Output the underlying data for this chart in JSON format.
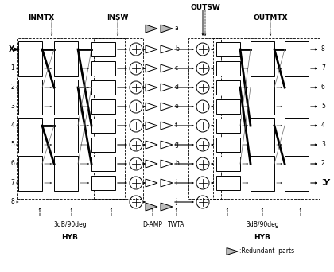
{
  "bg_color": "#ffffff",
  "fig_w": 4.2,
  "fig_h": 3.42,
  "n_main_rows": 8,
  "amp_labels": [
    "a",
    "b",
    "c",
    "d",
    "e",
    "f",
    "g",
    "h",
    "i",
    "j"
  ],
  "input_labels": [
    "X",
    "1",
    "2",
    "3",
    "4",
    "5",
    "6",
    "7",
    "8"
  ],
  "output_labels": [
    "8",
    "7",
    "6",
    "5",
    "4",
    "3",
    "2",
    "1"
  ],
  "section_labels": [
    "INMTX",
    "INSW",
    "OUTSW",
    "OUTMTX"
  ],
  "bottom_labels_left": [
    "3dB/90deg",
    "HYB"
  ],
  "bottom_labels_right": [
    "3dB/90deg",
    "HYB"
  ],
  "damp_label": "D-AMP",
  "twta_label": "TWTA",
  "redundant_label": ":Redundant  parts"
}
